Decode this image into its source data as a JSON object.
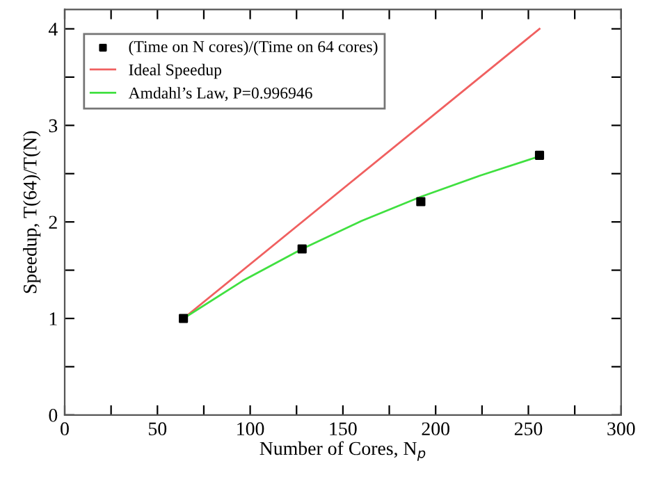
{
  "chart_data": {
    "type": "line",
    "xlabel": "Number of Cores, N$_{p}$",
    "ylabel": "Speedup, T(64)/T(N)",
    "series": [
      {
        "name": "(Time on N cores)/(Time on 64 cores)",
        "type": "scatter",
        "color": "#000000",
        "marker": "square",
        "x": [
          64,
          128,
          192,
          256
        ],
        "values": [
          1,
          1.72,
          2.21,
          2.69
        ]
      },
      {
        "name": "Ideal Speedup",
        "color": "#f06060",
        "marker": "none",
        "x": [
          64,
          256
        ],
        "values": [
          1,
          4
        ]
      },
      {
        "name": "Amdahl’s Law, P=0.996946",
        "color": "#40e040",
        "marker": "none",
        "x": [
          64,
          96,
          128,
          160,
          192,
          224,
          256
        ],
        "values": [
          1,
          1.39,
          1.72,
          2.01,
          2.26,
          2.48,
          2.68
        ]
      }
    ],
    "xlim": [
      0,
      300
    ],
    "ylim": [
      0,
      4.2
    ],
    "xticks": [
      0,
      {
        "value": 25,
        "label": null
      },
      50,
      {
        "value": 75,
        "label": null
      },
      100,
      {
        "value": 125,
        "label": null
      },
      150,
      {
        "value": 175,
        "label": null
      },
      200,
      {
        "value": 225,
        "label": null
      },
      250,
      {
        "value": 275,
        "label": null
      },
      300
    ],
    "yticks": [
      0,
      {
        "value": 0.5,
        "label": null
      },
      1,
      {
        "value": 1.5,
        "label": null
      },
      2,
      {
        "value": 2.5,
        "label": null
      },
      3,
      {
        "value": 3.5,
        "label": null
      },
      4
    ],
    "grid": false,
    "legend": "top left",
    "line_style": "solid"
  }
}
